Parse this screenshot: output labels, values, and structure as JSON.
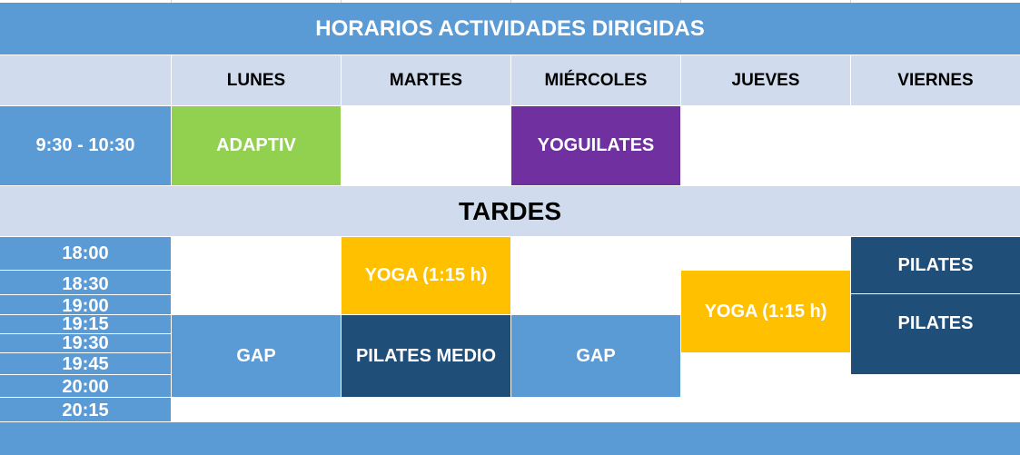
{
  "title": "HORARIOS ACTIVIDADES DIRIGIDAS",
  "days": [
    "LUNES",
    "MARTES",
    "MIÉRCOLES",
    "JUEVES",
    "VIERNES"
  ],
  "morning": {
    "time": "9:30 - 10:30",
    "lunes": "ADAPTIV",
    "miercoles": "YOGUILATES"
  },
  "afternoon_label": "TARDES",
  "times": [
    "18:00",
    "18:30",
    "19:00",
    "19:15",
    "19:30",
    "19:45",
    "20:00",
    "20:15"
  ],
  "events": {
    "martes_yoga": "YOGA (1:15 h)",
    "lunes_gap": "GAP",
    "martes_pilates": "PILATES MEDIO",
    "miercoles_gap": "GAP",
    "jueves_yoga": "YOGA (1:15 h)",
    "viernes_pilates_1": "PILATES",
    "viernes_pilates_2": "PILATES"
  },
  "colors": {
    "blue": "#5b9bd5",
    "green": "#92d050",
    "purple": "#7030a0",
    "yellow": "#ffc000",
    "navy": "#1f4e79",
    "header": "#d0dcee"
  }
}
